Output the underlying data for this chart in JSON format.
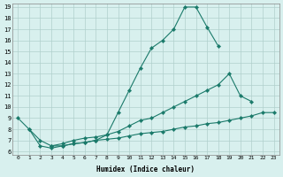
{
  "xlabel": "Humidex (Indice chaleur)",
  "bg_color": "#d8f0ee",
  "grid_color": "#b0d0cc",
  "line_color": "#1a7a6a",
  "xlim": [
    -0.5,
    23.5
  ],
  "ylim": [
    5.7,
    19.3
  ],
  "xticks": [
    0,
    1,
    2,
    3,
    4,
    5,
    6,
    7,
    8,
    9,
    10,
    11,
    12,
    13,
    14,
    15,
    16,
    17,
    18,
    19,
    20,
    21,
    22,
    23
  ],
  "yticks": [
    6,
    7,
    8,
    9,
    10,
    11,
    12,
    13,
    14,
    15,
    16,
    17,
    18,
    19
  ],
  "line1_x": [
    0,
    1,
    2,
    3,
    4,
    5,
    6,
    7,
    8,
    9,
    10,
    11,
    12,
    13,
    14,
    15,
    16,
    17,
    18
  ],
  "line1_y": [
    9.0,
    8.0,
    6.5,
    6.3,
    6.5,
    6.7,
    6.8,
    7.0,
    7.5,
    9.5,
    11.5,
    13.5,
    15.3,
    16.0,
    17.0,
    19.0,
    19.0,
    17.2,
    15.5
  ],
  "line2_x": [
    3,
    4,
    5,
    6,
    7,
    8,
    9,
    10,
    11,
    12,
    13,
    14,
    15,
    16,
    17,
    18,
    19,
    20,
    21
  ],
  "line2_y": [
    6.5,
    6.7,
    7.0,
    7.2,
    7.3,
    7.5,
    7.8,
    8.3,
    8.8,
    9.0,
    9.5,
    10.0,
    10.5,
    11.0,
    11.5,
    12.0,
    13.0,
    11.0,
    10.5
  ],
  "line3_x": [
    1,
    2,
    3,
    4,
    5,
    6,
    7,
    8,
    9,
    10,
    11,
    12,
    13,
    14,
    15,
    16,
    17,
    18,
    19,
    20,
    21,
    22,
    23
  ],
  "line3_y": [
    8.0,
    7.0,
    6.5,
    6.5,
    6.7,
    6.8,
    7.0,
    7.1,
    7.2,
    7.4,
    7.6,
    7.7,
    7.8,
    8.0,
    8.2,
    8.3,
    8.5,
    8.6,
    8.8,
    9.0,
    9.2,
    9.5,
    9.5
  ]
}
